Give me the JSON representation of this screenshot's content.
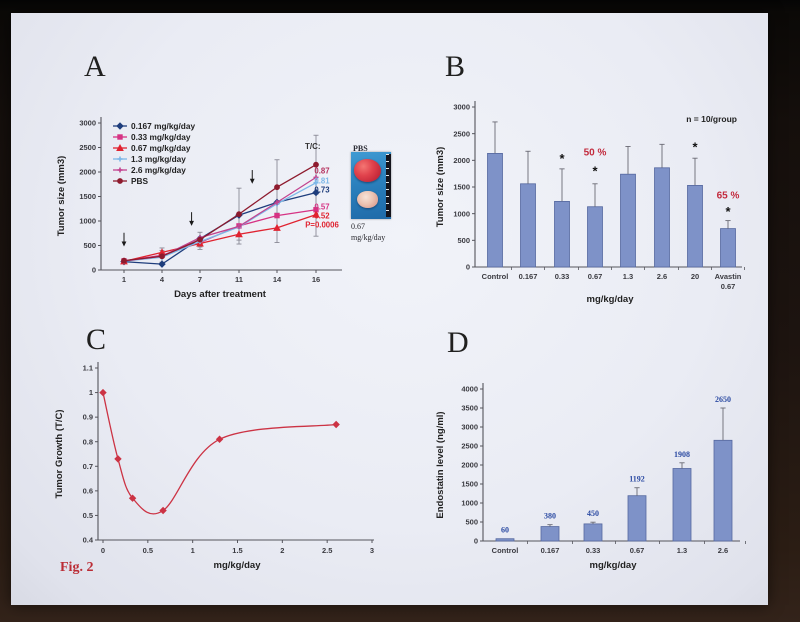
{
  "page": {
    "fig_label": "Fig. 2"
  },
  "panels": {
    "a": {
      "letter": "A"
    },
    "b": {
      "letter": "B"
    },
    "c": {
      "letter": "C"
    },
    "d": {
      "letter": "D"
    }
  },
  "inset": {
    "top_label": "PBS",
    "caption_line1": "0.67",
    "caption_line2": "mg/kg/day"
  },
  "colors": {
    "bar_fill": "#7e92c8",
    "bar_border": "#55689f",
    "annotation_red": "#c22a3d",
    "axis": "#55555c",
    "tick_text": "#3a3a40"
  },
  "chart_data": [
    {
      "id": "a",
      "type": "line",
      "title": "",
      "xlabel": "Days after treatment",
      "ylabel": "Tumor size (mm3)",
      "categories": [
        "1",
        "4",
        "7",
        "11",
        "14",
        "16"
      ],
      "ylim": [
        0,
        3000
      ],
      "y_ticks": [
        0,
        500,
        1000,
        1500,
        2000,
        2500,
        3000
      ],
      "legend_position": "upper-left",
      "grid": false,
      "series": [
        {
          "name": "0.167 mg/kg/day",
          "color": "#1e3d7c",
          "marker": "diamond",
          "values": [
            170,
            120,
            640,
            1120,
            1380,
            1580
          ]
        },
        {
          "name": "0.33 mg/kg/day",
          "color": "#d63384",
          "marker": "square",
          "values": [
            185,
            300,
            560,
            900,
            1110,
            1230
          ]
        },
        {
          "name": "0.67 mg/kg/day",
          "color": "#e02330",
          "marker": "triangle",
          "values": [
            175,
            360,
            540,
            730,
            860,
            1130
          ]
        },
        {
          "name": "1.3 mg/kg/day",
          "color": "#7db8e8",
          "marker": "cross",
          "values": [
            180,
            260,
            580,
            880,
            1350,
            1780
          ]
        },
        {
          "name": "2.6 mg/kg/day",
          "color": "#c2438f",
          "marker": "cross",
          "values": [
            185,
            280,
            660,
            890,
            1380,
            1890
          ]
        },
        {
          "name": "PBS",
          "color": "#8e1b2e",
          "marker": "circle",
          "values": [
            190,
            280,
            620,
            1140,
            1690,
            2150
          ]
        }
      ],
      "error_bars": [
        {
          "series": 5,
          "plus": [
            0,
            120,
            150,
            530,
            560,
            600
          ],
          "minus": [
            0,
            120,
            150,
            530,
            560,
            600
          ]
        },
        {
          "series": 2,
          "plus": [
            0,
            90,
            120,
            200,
            300,
            440
          ],
          "minus": [
            0,
            90,
            120,
            200,
            300,
            440
          ]
        }
      ],
      "tc_header": "T/C:",
      "tc_labels": [
        {
          "text": "0.87",
          "color": "#b5315e",
          "y": 2020
        },
        {
          "text": "0.81",
          "color": "#7db8e8",
          "y": 1816
        },
        {
          "text": "0.73",
          "color": "#1e3d7c",
          "y": 1633
        },
        {
          "text": "0.57",
          "color": "#d63384",
          "y": 1286
        },
        {
          "text": "0.52",
          "color": "#e02330",
          "y": 1102
        },
        {
          "text": "P=0.0006",
          "color": "#e02330",
          "y": 918
        }
      ],
      "arrows": [
        {
          "x_idx": 0,
          "tip": 480,
          "tail": 760
        },
        {
          "x_idx": 1.76,
          "tip": 900,
          "tail": 1180
        },
        {
          "x_idx": 3.34,
          "tip": 1760,
          "tail": 2040
        }
      ]
    },
    {
      "id": "b",
      "type": "bar",
      "title": "",
      "xlabel": "mg/kg/day",
      "ylabel": "Tumor size (mm3)",
      "categories": [
        "Control",
        "0.167",
        "0.33",
        "0.67",
        "1.3",
        "2.6",
        "20",
        "Avastin\n0.67"
      ],
      "values": [
        2130,
        1560,
        1230,
        1130,
        1740,
        1860,
        1530,
        720
      ],
      "error_up": [
        590,
        610,
        610,
        430,
        520,
        440,
        510,
        150
      ],
      "ylim": [
        0,
        3000
      ],
      "y_ticks": [
        0,
        500,
        1000,
        1500,
        2000,
        2500,
        3000
      ],
      "grid": false,
      "note": "n = 10/group",
      "asterisks": [
        {
          "cat": 2,
          "y": 1950
        },
        {
          "cat": 3,
          "y": 1720
        },
        {
          "cat": 6,
          "y": 2170
        },
        {
          "cat": 7,
          "y": 960
        }
      ],
      "percent_labels": [
        {
          "cat": 3,
          "y": 2090,
          "text": "50 %"
        },
        {
          "cat": 7,
          "y": 1280,
          "text": "65 %"
        }
      ]
    },
    {
      "id": "c",
      "type": "line",
      "title": "",
      "xlabel": "mg/kg/day",
      "ylabel": "Tumor Growth (T/C)",
      "x": [
        0,
        0.167,
        0.33,
        0.67,
        1.3,
        2.6
      ],
      "y": [
        1.0,
        0.73,
        0.57,
        0.52,
        0.81,
        0.87
      ],
      "xlim": [
        0,
        3
      ],
      "ylim": [
        0.4,
        1.1
      ],
      "x_ticks": [
        0,
        0.5,
        1,
        1.5,
        2,
        2.5,
        3
      ],
      "y_ticks": [
        0.4,
        0.5,
        0.6,
        0.7,
        0.8,
        0.9,
        1,
        1.1
      ],
      "color": "#cc3344",
      "marker": "diamond",
      "smooth": true,
      "grid": false
    },
    {
      "id": "d",
      "type": "bar",
      "title": "",
      "xlabel": "mg/kg/day",
      "ylabel": "Endostatin level (ng/ml)",
      "categories": [
        "Control",
        "0.167",
        "0.33",
        "0.67",
        "1.3",
        "2.6"
      ],
      "values": [
        60,
        380,
        450,
        1192,
        1908,
        2650
      ],
      "error_up": [
        0,
        50,
        45,
        210,
        150,
        850
      ],
      "value_labels": [
        "60",
        "380",
        "450",
        "1192",
        "1908",
        "2650"
      ],
      "value_label_color": "#2b4aa2",
      "ylim": [
        0,
        4000
      ],
      "y_ticks": [
        0,
        500,
        1000,
        1500,
        2000,
        2500,
        3000,
        3500,
        4000
      ],
      "grid": false
    }
  ]
}
